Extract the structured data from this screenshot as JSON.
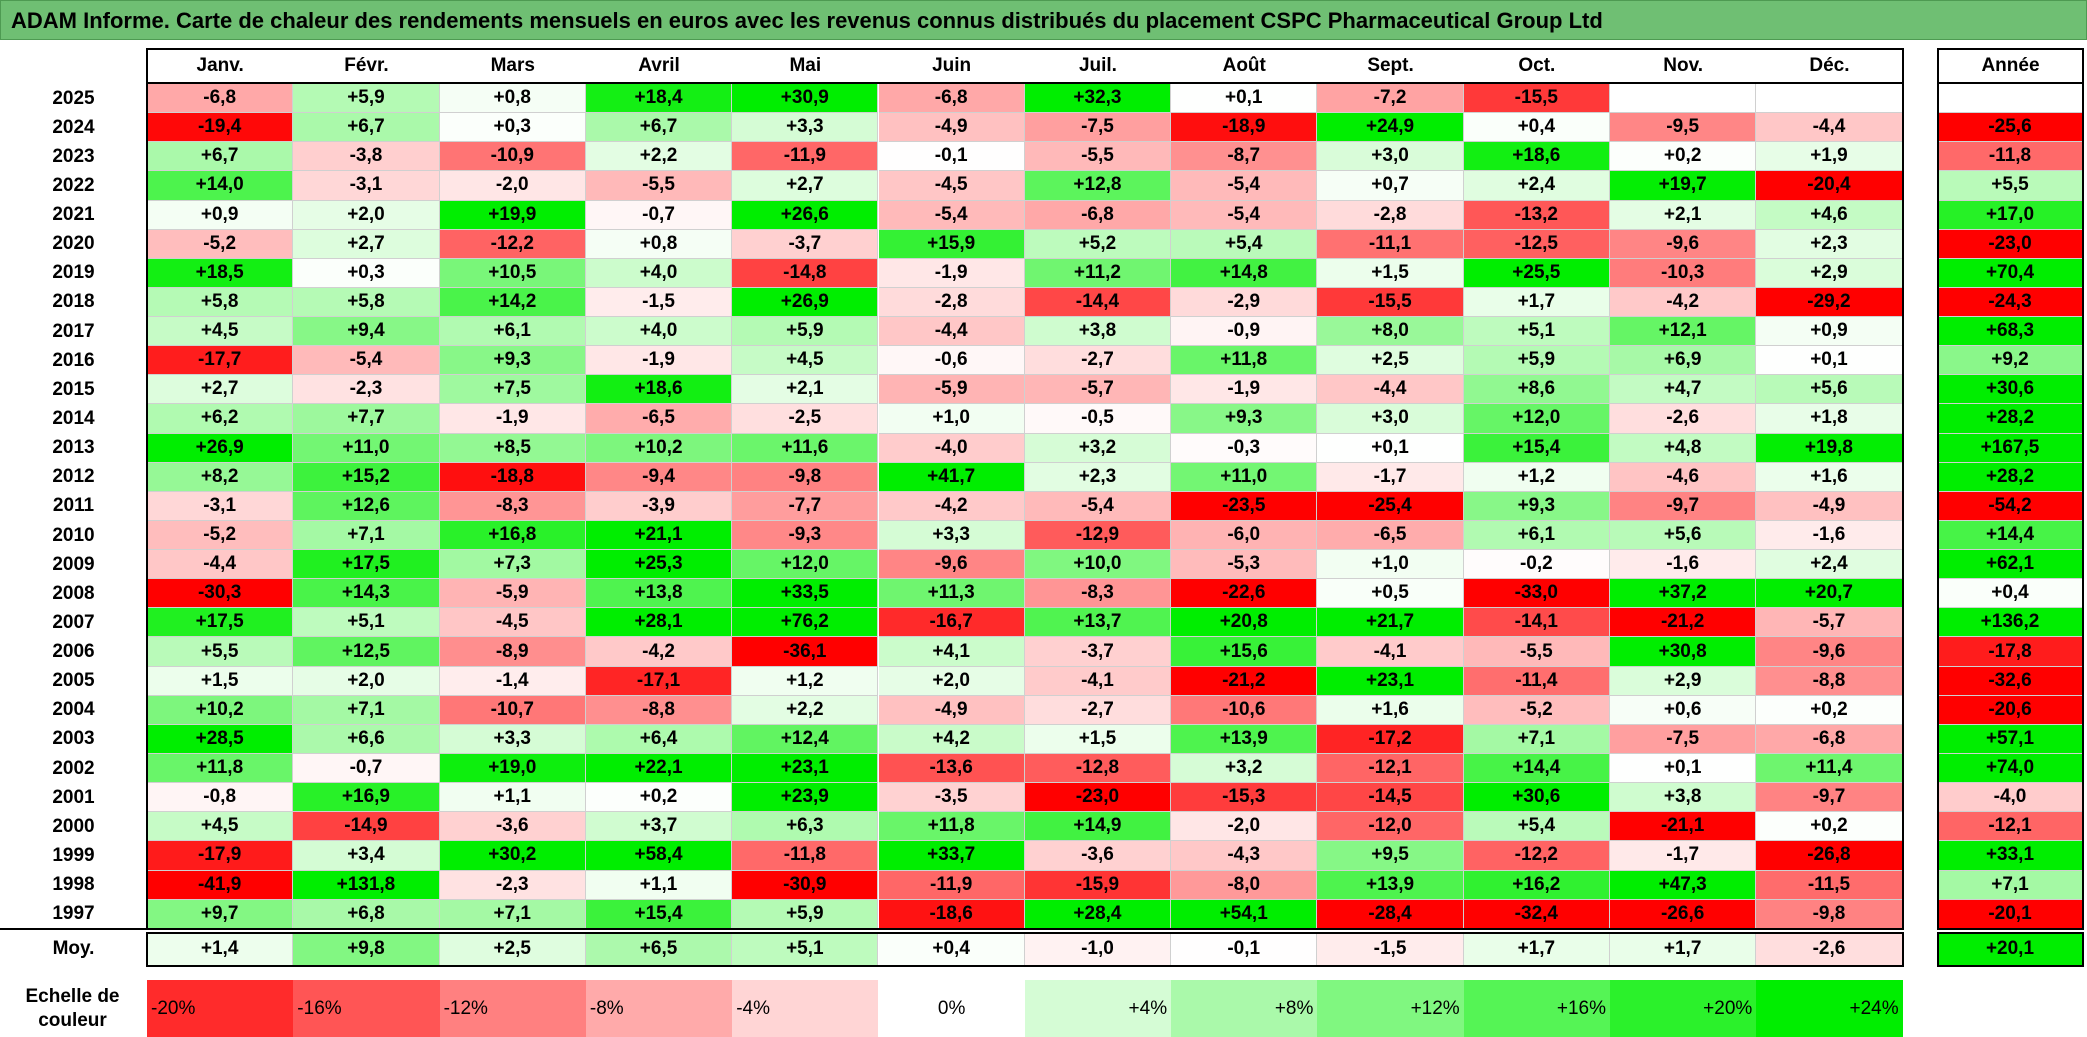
{
  "title": "ADAM Informe. Carte de chaleur des rendements mensuels en euros avec les revenus connus distribués du placement CSPC Pharmaceutical Group Ltd",
  "chart_data": {
    "type": "heatmap",
    "months": [
      "Janv.",
      "Févr.",
      "Mars",
      "Avril",
      "Mai",
      "Juin",
      "Juil.",
      "Août",
      "Sept.",
      "Oct.",
      "Nov.",
      "Déc."
    ],
    "year_header": "Année",
    "rows": [
      {
        "year": "2025",
        "values": [
          "-6,8",
          "+5,9",
          "+0,8",
          "+18,4",
          "+30,9",
          "-6,8",
          "+32,3",
          "+0,1",
          "-7,2",
          "-15,5",
          "",
          ""
        ],
        "annual": ""
      },
      {
        "year": "2024",
        "values": [
          "-19,4",
          "+6,7",
          "+0,3",
          "+6,7",
          "+3,3",
          "-4,9",
          "-7,5",
          "-18,9",
          "+24,9",
          "+0,4",
          "-9,5",
          "-4,4"
        ],
        "annual": "-25,6"
      },
      {
        "year": "2023",
        "values": [
          "+6,7",
          "-3,8",
          "-10,9",
          "+2,2",
          "-11,9",
          "-0,1",
          "-5,5",
          "-8,7",
          "+3,0",
          "+18,6",
          "+0,2",
          "+1,9"
        ],
        "annual": "-11,8"
      },
      {
        "year": "2022",
        "values": [
          "+14,0",
          "-3,1",
          "-2,0",
          "-5,5",
          "+2,7",
          "-4,5",
          "+12,8",
          "-5,4",
          "+0,7",
          "+2,4",
          "+19,7",
          "-20,4"
        ],
        "annual": "+5,5"
      },
      {
        "year": "2021",
        "values": [
          "+0,9",
          "+2,0",
          "+19,9",
          "-0,7",
          "+26,6",
          "-5,4",
          "-6,8",
          "-5,4",
          "-2,8",
          "-13,2",
          "+2,1",
          "+4,6"
        ],
        "annual": "+17,0"
      },
      {
        "year": "2020",
        "values": [
          "-5,2",
          "+2,7",
          "-12,2",
          "+0,8",
          "-3,7",
          "+15,9",
          "+5,2",
          "+5,4",
          "-11,1",
          "-12,5",
          "-9,6",
          "+2,3"
        ],
        "annual": "-23,0"
      },
      {
        "year": "2019",
        "values": [
          "+18,5",
          "+0,3",
          "+10,5",
          "+4,0",
          "-14,8",
          "-1,9",
          "+11,2",
          "+14,8",
          "+1,5",
          "+25,5",
          "-10,3",
          "+2,9"
        ],
        "annual": "+70,4"
      },
      {
        "year": "2018",
        "values": [
          "+5,8",
          "+5,8",
          "+14,2",
          "-1,5",
          "+26,9",
          "-2,8",
          "-14,4",
          "-2,9",
          "-15,5",
          "+1,7",
          "-4,2",
          "-29,2"
        ],
        "annual": "-24,3"
      },
      {
        "year": "2017",
        "values": [
          "+4,5",
          "+9,4",
          "+6,1",
          "+4,0",
          "+5,9",
          "-4,4",
          "+3,8",
          "-0,9",
          "+8,0",
          "+5,1",
          "+12,1",
          "+0,9"
        ],
        "annual": "+68,3"
      },
      {
        "year": "2016",
        "values": [
          "-17,7",
          "-5,4",
          "+9,3",
          "-1,9",
          "+4,5",
          "-0,6",
          "-2,7",
          "+11,8",
          "+2,5",
          "+5,9",
          "+6,9",
          "+0,1"
        ],
        "annual": "+9,2"
      },
      {
        "year": "2015",
        "values": [
          "+2,7",
          "-2,3",
          "+7,5",
          "+18,6",
          "+2,1",
          "-5,9",
          "-5,7",
          "-1,9",
          "-4,4",
          "+8,6",
          "+4,7",
          "+5,6"
        ],
        "annual": "+30,6"
      },
      {
        "year": "2014",
        "values": [
          "+6,2",
          "+7,7",
          "-1,9",
          "-6,5",
          "-2,5",
          "+1,0",
          "-0,5",
          "+9,3",
          "+3,0",
          "+12,0",
          "-2,6",
          "+1,8"
        ],
        "annual": "+28,2"
      },
      {
        "year": "2013",
        "values": [
          "+26,9",
          "+11,0",
          "+8,5",
          "+10,2",
          "+11,6",
          "-4,0",
          "+3,2",
          "-0,3",
          "+0,1",
          "+15,4",
          "+4,8",
          "+19,8"
        ],
        "annual": "+167,5"
      },
      {
        "year": "2012",
        "values": [
          "+8,2",
          "+15,2",
          "-18,8",
          "-9,4",
          "-9,8",
          "+41,7",
          "+2,3",
          "+11,0",
          "-1,7",
          "+1,2",
          "-4,6",
          "+1,6"
        ],
        "annual": "+28,2"
      },
      {
        "year": "2011",
        "values": [
          "-3,1",
          "+12,6",
          "-8,3",
          "-3,9",
          "-7,7",
          "-4,2",
          "-5,4",
          "-23,5",
          "-25,4",
          "+9,3",
          "-9,7",
          "-4,9"
        ],
        "annual": "-54,2"
      },
      {
        "year": "2010",
        "values": [
          "-5,2",
          "+7,1",
          "+16,8",
          "+21,1",
          "-9,3",
          "+3,3",
          "-12,9",
          "-6,0",
          "-6,5",
          "+6,1",
          "+5,6",
          "-1,6"
        ],
        "annual": "+14,4"
      },
      {
        "year": "2009",
        "values": [
          "-4,4",
          "+17,5",
          "+7,3",
          "+25,3",
          "+12,0",
          "-9,6",
          "+10,0",
          "-5,3",
          "+1,0",
          "-0,2",
          "-1,6",
          "+2,4"
        ],
        "annual": "+62,1"
      },
      {
        "year": "2008",
        "values": [
          "-30,3",
          "+14,3",
          "-5,9",
          "+13,8",
          "+33,5",
          "+11,3",
          "-8,3",
          "-22,6",
          "+0,5",
          "-33,0",
          "+37,2",
          "+20,7"
        ],
        "annual": "+0,4"
      },
      {
        "year": "2007",
        "values": [
          "+17,5",
          "+5,1",
          "-4,5",
          "+28,1",
          "+76,2",
          "-16,7",
          "+13,7",
          "+20,8",
          "+21,7",
          "-14,1",
          "-21,2",
          "-5,7"
        ],
        "annual": "+136,2"
      },
      {
        "year": "2006",
        "values": [
          "+5,5",
          "+12,5",
          "-8,9",
          "-4,2",
          "-36,1",
          "+4,1",
          "-3,7",
          "+15,6",
          "-4,1",
          "-5,5",
          "+30,8",
          "-9,6"
        ],
        "annual": "-17,8"
      },
      {
        "year": "2005",
        "values": [
          "+1,5",
          "+2,0",
          "-1,4",
          "-17,1",
          "+1,2",
          "+2,0",
          "-4,1",
          "-21,2",
          "+23,1",
          "-11,4",
          "+2,9",
          "-8,8"
        ],
        "annual": "-32,6"
      },
      {
        "year": "2004",
        "values": [
          "+10,2",
          "+7,1",
          "-10,7",
          "-8,8",
          "+2,2",
          "-4,9",
          "-2,7",
          "-10,6",
          "+1,6",
          "-5,2",
          "+0,6",
          "+0,2"
        ],
        "annual": "-20,6"
      },
      {
        "year": "2003",
        "values": [
          "+28,5",
          "+6,6",
          "+3,3",
          "+6,4",
          "+12,4",
          "+4,2",
          "+1,5",
          "+13,9",
          "-17,2",
          "+7,1",
          "-7,5",
          "-6,8"
        ],
        "annual": "+57,1"
      },
      {
        "year": "2002",
        "values": [
          "+11,8",
          "-0,7",
          "+19,0",
          "+22,1",
          "+23,1",
          "-13,6",
          "-12,8",
          "+3,2",
          "-12,1",
          "+14,4",
          "+0,1",
          "+11,4"
        ],
        "annual": "+74,0"
      },
      {
        "year": "2001",
        "values": [
          "-0,8",
          "+16,9",
          "+1,1",
          "+0,2",
          "+23,9",
          "-3,5",
          "-23,0",
          "-15,3",
          "-14,5",
          "+30,6",
          "+3,8",
          "-9,7"
        ],
        "annual": "-4,0"
      },
      {
        "year": "2000",
        "values": [
          "+4,5",
          "-14,9",
          "-3,6",
          "+3,7",
          "+6,3",
          "+11,8",
          "+14,9",
          "-2,0",
          "-12,0",
          "+5,4",
          "-21,1",
          "+0,2"
        ],
        "annual": "-12,1"
      },
      {
        "year": "1999",
        "values": [
          "-17,9",
          "+3,4",
          "+30,2",
          "+58,4",
          "-11,8",
          "+33,7",
          "-3,6",
          "-4,3",
          "+9,5",
          "-12,2",
          "-1,7",
          "-26,8"
        ],
        "annual": "+33,1"
      },
      {
        "year": "1998",
        "values": [
          "-41,9",
          "+131,8",
          "-2,3",
          "+1,1",
          "-30,9",
          "-11,9",
          "-15,9",
          "-8,0",
          "+13,9",
          "+16,2",
          "+47,3",
          "-11,5"
        ],
        "annual": "+7,1"
      },
      {
        "year": "1997",
        "values": [
          "+9,7",
          "+6,8",
          "+7,1",
          "+15,4",
          "+5,9",
          "-18,6",
          "+28,4",
          "+54,1",
          "-28,4",
          "-32,4",
          "-26,6",
          "-9,8"
        ],
        "annual": "-20,1"
      }
    ],
    "average": {
      "label": "Moy.",
      "values": [
        "+1,4",
        "+9,8",
        "+2,5",
        "+6,5",
        "+5,1",
        "+0,4",
        "-1,0",
        "-0,1",
        "-1,5",
        "+1,7",
        "+1,7",
        "-2,6"
      ],
      "annual": "+20,1"
    },
    "scale": {
      "label": "Echelle de couleur",
      "steps": [
        {
          "label": "-20%",
          "value": -20
        },
        {
          "label": "-16%",
          "value": -16
        },
        {
          "label": "-12%",
          "value": -12
        },
        {
          "label": "-8%",
          "value": -8
        },
        {
          "label": "-4%",
          "value": -4
        },
        {
          "label": "0%",
          "value": 0
        },
        {
          "label": "+4%",
          "value": 4
        },
        {
          "label": "+8%",
          "value": 8
        },
        {
          "label": "+12%",
          "value": 12
        },
        {
          "label": "+16%",
          "value": 16
        },
        {
          "label": "+20%",
          "value": 20
        },
        {
          "label": "+24%",
          "value": 24
        }
      ]
    },
    "colors": {
      "negative_max": "#ff0000",
      "neutral": "#ffffff",
      "positive_max": "#00ee00"
    }
  }
}
